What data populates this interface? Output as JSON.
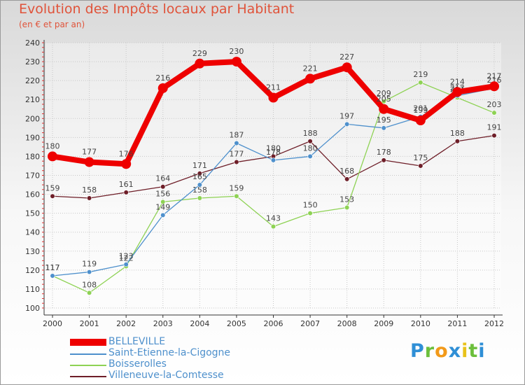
{
  "chart_data": {
    "type": "line",
    "title": "Evolution des Impôts locaux par Habitant",
    "subtitle": "(en € et par an)",
    "xlabel": "",
    "ylabel": "",
    "categories": [
      "2000",
      "2001",
      "2002",
      "2003",
      "2004",
      "2005",
      "2006",
      "2007",
      "2008",
      "2009",
      "2010",
      "2011",
      "2012"
    ],
    "ylim": [
      100,
      240
    ],
    "yticks": [
      "100",
      "110",
      "120",
      "130",
      "140",
      "150",
      "160",
      "170",
      "180",
      "190",
      "200",
      "210",
      "220",
      "230",
      "240"
    ],
    "grid": true,
    "legend_position": "bottom-left",
    "series": [
      {
        "name": "Villeneuve-la-Comtesse",
        "color": "#6e1e28",
        "values": [
          159,
          158,
          161,
          164,
          171,
          177,
          180,
          188,
          168,
          178,
          175,
          188,
          191
        ],
        "labels": [
          "159",
          "158",
          "161",
          "164",
          "171",
          "177",
          "180",
          "188",
          "168",
          "178",
          "175",
          "188",
          "191"
        ]
      },
      {
        "name": "Boisserolles",
        "color": "#8ed254",
        "values": [
          117,
          108,
          122,
          156,
          158,
          159,
          143,
          150,
          153,
          209,
          219,
          211,
          203
        ],
        "labels": [
          "117",
          "108",
          "122",
          "156",
          "158",
          "159",
          "143",
          "150",
          "153",
          "209",
          "219",
          "211",
          "203"
        ]
      },
      {
        "name": "Saint-Etienne-la-Cigogne",
        "color": "#4e90cc",
        "values": [
          117,
          119,
          123,
          149,
          165,
          187,
          178,
          180,
          197,
          195,
          201,
          212,
          216
        ],
        "labels": [
          "117",
          "119",
          "123",
          "149",
          "165",
          "187",
          "178",
          "180",
          "197",
          "195",
          "201",
          "212",
          "216"
        ]
      },
      {
        "name": "BELLEVILLE",
        "color": "#ee0000",
        "values": [
          180,
          177,
          176,
          216,
          229,
          230,
          211,
          221,
          227,
          205,
          199,
          214,
          217
        ],
        "labels": [
          "180",
          "177",
          "176",
          "216",
          "229",
          "230",
          "211",
          "221",
          "227",
          "205",
          "199",
          "214",
          "217"
        ]
      }
    ],
    "legend": [
      {
        "name": "BELLEVILLE",
        "color": "#ee0000"
      },
      {
        "name": "Saint-Etienne-la-Cigogne",
        "color": "#4e90cc"
      },
      {
        "name": "Boisserolles",
        "color": "#8ed254"
      },
      {
        "name": "Villeneuve-la-Comtesse",
        "color": "#6e1e28"
      }
    ]
  },
  "brand": {
    "letters": [
      "P",
      "r",
      "o",
      "x",
      "i",
      "t",
      "i"
    ],
    "colors": [
      "#2f8fd6",
      "#6cbf3c",
      "#f29a1a",
      "#2f8fd6",
      "#e8c21a",
      "#6cbf3c",
      "#2f8fd6"
    ]
  },
  "colors": {
    "title": "#e0533a",
    "axis": "#333333",
    "grid": "#c8c8c8",
    "tick_red": "#e03030"
  }
}
